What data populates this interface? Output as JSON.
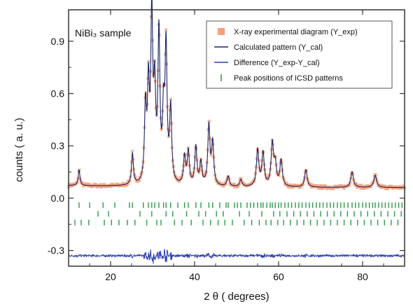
{
  "chart_data": {
    "type": "line",
    "sample_label": "NiBi₃ sample",
    "xlabel": "2 θ ( degrees)",
    "ylabel": "counts ( a. u.)",
    "xlim": [
      10,
      90
    ],
    "ylim": [
      -0.39,
      1.08
    ],
    "x_ticks": [
      20,
      40,
      60,
      80
    ],
    "x_tick_labels": [
      "20",
      "40",
      "60",
      "80"
    ],
    "y_ticks": [
      0.9,
      0.6,
      0.3,
      0.0,
      -0.3
    ],
    "y_tick_labels": [
      "0.9",
      "0.6",
      "0.3",
      "0.0",
      "-0.3"
    ],
    "legend_position": "top-right",
    "legend": [
      {
        "label": "X-ray experimental diagram (Y_exp)",
        "marker": "square",
        "color": "#f4a07c"
      },
      {
        "label": "Calculated pattern (Y_cal)",
        "marker": "line",
        "color": "#1a2466"
      },
      {
        "label": "Difference (Y_exp-Y_cal)",
        "marker": "line",
        "color": "#2b3fb0"
      },
      {
        "label": "Peak positions of ICSD patterns",
        "marker": "tick",
        "color": "#2e9a4a"
      }
    ],
    "colors": {
      "experimental": "#f4a07c",
      "calculated": "#1a2466",
      "difference": "#2b3fb0",
      "peak_ticks": "#2e9a4a",
      "frame": "#333333"
    },
    "background_level": 0.06,
    "difference_baseline": -0.33,
    "peaks": [
      {
        "x": 12.5,
        "y": 0.15
      },
      {
        "x": 25.2,
        "y": 0.24
      },
      {
        "x": 28.3,
        "y": 0.48
      },
      {
        "x": 29.0,
        "y": 0.58
      },
      {
        "x": 29.8,
        "y": 1.0
      },
      {
        "x": 30.5,
        "y": 0.55
      },
      {
        "x": 31.5,
        "y": 0.9
      },
      {
        "x": 32.6,
        "y": 0.42
      },
      {
        "x": 33.2,
        "y": 0.82
      },
      {
        "x": 34.3,
        "y": 0.48
      },
      {
        "x": 37.6,
        "y": 0.22
      },
      {
        "x": 38.5,
        "y": 0.25
      },
      {
        "x": 40.3,
        "y": 0.28
      },
      {
        "x": 41.5,
        "y": 0.19
      },
      {
        "x": 43.4,
        "y": 0.4
      },
      {
        "x": 44.3,
        "y": 0.3
      },
      {
        "x": 48.0,
        "y": 0.12
      },
      {
        "x": 51.0,
        "y": 0.1
      },
      {
        "x": 55.0,
        "y": 0.27
      },
      {
        "x": 56.3,
        "y": 0.25
      },
      {
        "x": 58.5,
        "y": 0.3
      },
      {
        "x": 59.2,
        "y": 0.18
      },
      {
        "x": 60.6,
        "y": 0.21
      },
      {
        "x": 66.5,
        "y": 0.16
      },
      {
        "x": 77.5,
        "y": 0.15
      },
      {
        "x": 83.0,
        "y": 0.13
      }
    ],
    "peak_position_rows": [
      {
        "y": -0.04,
        "positions": [
          12.5,
          15.0,
          18.2,
          21.0,
          24.5,
          25.2,
          27.8,
          29.0,
          29.8,
          30.5,
          31.5,
          32.6,
          33.2,
          34.3,
          36.0,
          37.6,
          38.5,
          40.3,
          41.5,
          43.4,
          44.3,
          46.0,
          47.5,
          48.0,
          49.5,
          50.2,
          51.0,
          52.5,
          53.3,
          54.1,
          55.0,
          55.8,
          56.3,
          57.2,
          58.0,
          58.5,
          59.2,
          60.0,
          60.6,
          61.5,
          62.3,
          63.1,
          64.0,
          64.8,
          65.6,
          66.5,
          67.3,
          68.1,
          69.0,
          69.8,
          70.6,
          71.5,
          72.3,
          73.1,
          74.0,
          74.8,
          75.6,
          76.5,
          77.5,
          78.3,
          79.1,
          80.0,
          80.8,
          81.6,
          82.4,
          83.0,
          83.8,
          84.6,
          85.4,
          86.2,
          87.0,
          87.8,
          88.6,
          89.4
        ]
      },
      {
        "y": -0.09,
        "positions": [
          17.0,
          19.5,
          27.0,
          29.8,
          33.2,
          34.8,
          38.1,
          41.0,
          42.6,
          45.2,
          46.8,
          50.7,
          53.0,
          56.0,
          58.8,
          60.3,
          62.0,
          63.6,
          65.2,
          66.8,
          68.4,
          70.0,
          71.6,
          73.2,
          74.8,
          76.4,
          78.0,
          79.6,
          81.2,
          82.8,
          84.4,
          86.0,
          87.6,
          89.2
        ]
      },
      {
        "y": -0.14,
        "positions": [
          11.5,
          13.0,
          14.8,
          18.5,
          20.2,
          22.0,
          24.0,
          25.8,
          28.6,
          31.0,
          32.0,
          35.2,
          37.0,
          39.2,
          42.0,
          43.8,
          45.6,
          47.2,
          49.0,
          51.8,
          53.6,
          55.4,
          57.0,
          58.2,
          59.8,
          61.2,
          62.8,
          64.4,
          66.0,
          67.6,
          69.2,
          70.8,
          72.4,
          74.0,
          75.6,
          77.2,
          78.8,
          80.4,
          82.0,
          83.6,
          85.2,
          86.8,
          88.4
        ]
      }
    ]
  }
}
